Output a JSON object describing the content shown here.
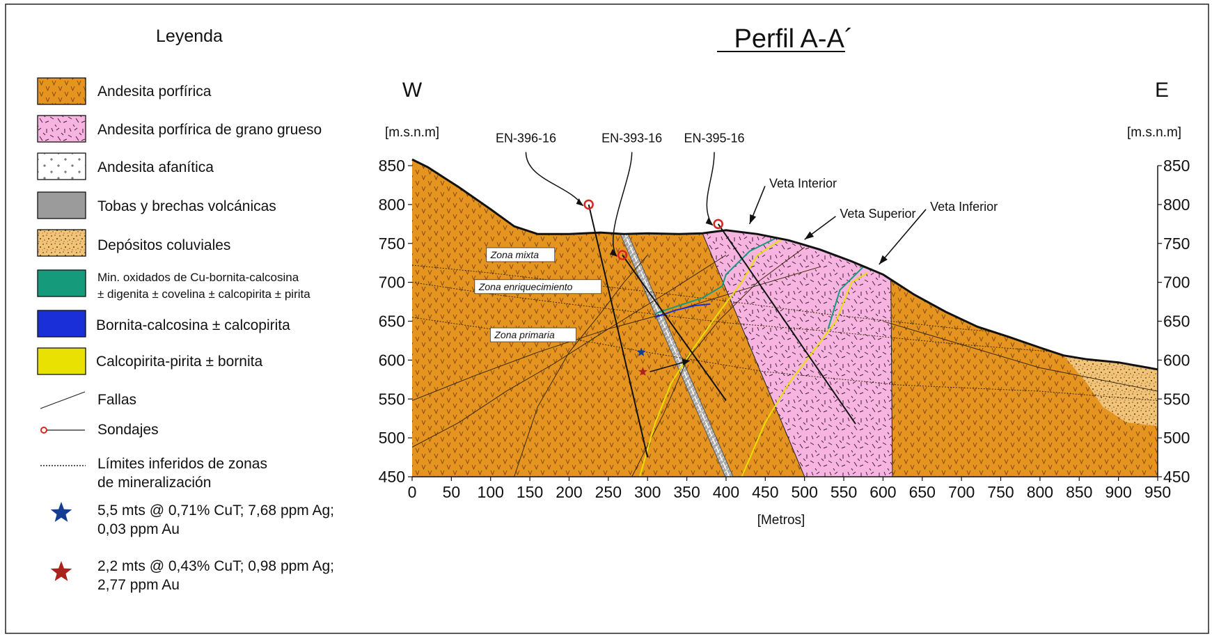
{
  "legend": {
    "title": "Leyenda",
    "items": [
      {
        "key": "andesita-porfirica",
        "lines": [
          "Andesita porfírica"
        ]
      },
      {
        "key": "andesita-grano-grueso",
        "lines": [
          "Andesita porfírica de grano grueso"
        ]
      },
      {
        "key": "andesita-afanitica",
        "lines": [
          "Andesita afanítica"
        ]
      },
      {
        "key": "tobas-brechas",
        "lines": [
          "Tobas y brechas volcánicas"
        ]
      },
      {
        "key": "depositos-coluviales",
        "lines": [
          "Depósitos coluviales"
        ]
      },
      {
        "key": "min-oxidados",
        "lines": [
          "Min. oxidados de Cu-bornita-calcosina",
          "± digenita ± covelina ± calcopirita ± pirita"
        ]
      },
      {
        "key": "bornita-calcosina",
        "lines": [
          "Bornita-calcosina ± calcopirita"
        ]
      },
      {
        "key": "calcopirita-pirita",
        "lines": [
          "Calcopirita-pirita ± bornita"
        ]
      },
      {
        "key": "fallas",
        "lines": [
          "Fallas"
        ]
      },
      {
        "key": "sondajes",
        "lines": [
          "Sondajes"
        ]
      },
      {
        "key": "limites",
        "lines": [
          "Límites inferidos de zonas",
          "de mineralización"
        ]
      },
      {
        "key": "star-blue",
        "lines": [
          "5,5 mts @ 0,71% CuT; 7,68 ppm Ag;",
          "0,03 ppm Au"
        ]
      },
      {
        "key": "star-red",
        "lines": [
          "2,2 mts @ 0,43% CuT; 0,98 ppm Ag;",
          "2,77 ppm Au"
        ]
      }
    ]
  },
  "profile": {
    "title": "Perfil A-A´",
    "west_label": "W",
    "east_label": "E",
    "y_unit_left": "[m.s.n.m]",
    "y_unit_right": "[m.s.n.m]",
    "x_label": "[Metros]",
    "x_range": [
      0,
      950
    ],
    "y_range": [
      450,
      850
    ],
    "x_ticks": [
      0,
      50,
      100,
      150,
      200,
      250,
      300,
      350,
      400,
      450,
      500,
      550,
      600,
      650,
      700,
      750,
      800,
      850,
      900,
      950
    ],
    "y_ticks": [
      850,
      800,
      750,
      700,
      650,
      600,
      550,
      500,
      450
    ],
    "topography": [
      [
        0,
        858
      ],
      [
        20,
        848
      ],
      [
        60,
        822
      ],
      [
        100,
        794
      ],
      [
        130,
        772
      ],
      [
        160,
        762
      ],
      [
        200,
        762
      ],
      [
        240,
        764
      ],
      [
        270,
        762
      ],
      [
        300,
        763
      ],
      [
        340,
        762
      ],
      [
        370,
        763
      ],
      [
        400,
        767
      ],
      [
        440,
        762
      ],
      [
        480,
        754
      ],
      [
        520,
        742
      ],
      [
        560,
        727
      ],
      [
        600,
        710
      ],
      [
        640,
        684
      ],
      [
        680,
        662
      ],
      [
        720,
        643
      ],
      [
        760,
        630
      ],
      [
        800,
        616
      ],
      [
        830,
        606
      ],
      [
        860,
        601
      ],
      [
        900,
        597
      ],
      [
        950,
        588
      ]
    ],
    "units": {
      "coarse_andesite": [
        [
          370,
          763
        ],
        [
          400,
          767
        ],
        [
          440,
          762
        ],
        [
          480,
          754
        ],
        [
          520,
          742
        ],
        [
          560,
          727
        ],
        [
          600,
          710
        ],
        [
          610,
          708
        ],
        [
          612,
          450
        ],
        [
          500,
          450
        ]
      ],
      "colluvial": [
        [
          830,
          606
        ],
        [
          860,
          601
        ],
        [
          900,
          597
        ],
        [
          950,
          588
        ],
        [
          950,
          515
        ],
        [
          910,
          520
        ],
        [
          880,
          540
        ],
        [
          860,
          570
        ]
      ],
      "tuff_band": [
        [
          [
            264,
            765
          ],
          [
            274,
            765
          ],
          [
            409,
            450
          ],
          [
            399,
            450
          ]
        ]
      ]
    },
    "drillholes": [
      {
        "name": "EN-396-16",
        "collar": [
          225,
          800
        ],
        "end": [
          300,
          475
        ],
        "label_at": [
          145,
          880
        ]
      },
      {
        "name": "EN-393-16",
        "collar": [
          268,
          735
        ],
        "end": [
          400,
          548
        ],
        "label_at": [
          280,
          880
        ]
      },
      {
        "name": "EN-395-16",
        "collar": [
          390,
          775
        ],
        "end": [
          565,
          518
        ],
        "label_at": [
          385,
          880
        ]
      }
    ],
    "veins": [
      {
        "name": "Veta Interior",
        "arrow_tip": [
          430,
          775
        ],
        "label_at": [
          455,
          822
        ]
      },
      {
        "name": "Veta Superior",
        "arrow_tip": [
          500,
          755
        ],
        "label_at": [
          545,
          783
        ]
      },
      {
        "name": "Veta Inferior",
        "arrow_tip": [
          595,
          723
        ],
        "label_at": [
          660,
          792
        ]
      }
    ],
    "zones": [
      {
        "name": "Zona mixta",
        "at": [
          100,
          731
        ]
      },
      {
        "name": "Zona enriquecimiento",
        "at": [
          85,
          690
        ]
      },
      {
        "name": "Zona primaria",
        "at": [
          105,
          628
        ]
      }
    ],
    "samples": [
      {
        "key": "star-blue",
        "at": [
          292,
          610
        ]
      },
      {
        "key": "star-red",
        "at": [
          294,
          585
        ]
      }
    ],
    "colors": {
      "andesite": "#E5951F",
      "coarse_andesite": "#F7B4E1",
      "aphanitic": "#FFFFFF",
      "tuff": "#9B9B9B",
      "colluvial": "#F2C479",
      "oxides": "#159A7C",
      "bornite": "#1B2FD9",
      "chalcopyrite": "#E9E102",
      "drillhole_collar": "#D7261F",
      "star_blue": "#123D92",
      "star_red": "#A9231C"
    }
  }
}
